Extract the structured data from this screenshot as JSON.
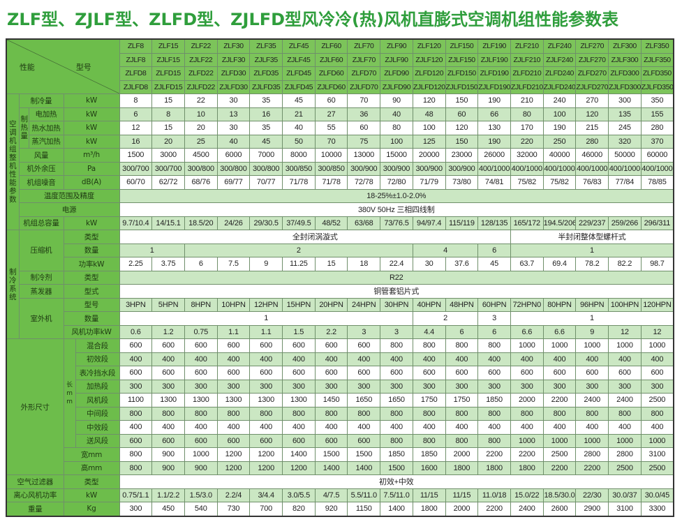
{
  "title": "ZLF型、ZJLF型、ZLFD型、ZJLFD型风冷冷(热)风机直膨式空调机组性能参数表",
  "colors": {
    "title": "#2f9e3c",
    "label_bg": "#6dbd4b",
    "header_bg": "#7cc45a",
    "row_alt": "#cbe7c3"
  },
  "header": {
    "performance": "性能",
    "model": "型号",
    "models": [
      [
        "ZLF8",
        "ZLF15",
        "ZLF22",
        "ZLF30",
        "ZLF35",
        "ZLF45",
        "ZLF60",
        "ZLF70",
        "ZLF90",
        "ZLF120",
        "ZLF150",
        "ZLF190",
        "ZLF210",
        "ZLF240",
        "ZLF270",
        "ZLF300",
        "ZLF350"
      ],
      [
        "ZJLF8",
        "ZJLF15",
        "ZJLF22",
        "ZJLF30",
        "ZJLF35",
        "ZJLF45",
        "ZJLF60",
        "ZJLF70",
        "ZJLF90",
        "ZJLF120",
        "ZJLF150",
        "ZJLF190",
        "ZJLF210",
        "ZJLF240",
        "ZJLF270",
        "ZJLF300",
        "ZJLF350"
      ],
      [
        "ZLFD8",
        "ZLFD15",
        "ZLFD22",
        "ZLFD30",
        "ZLFD35",
        "ZLFD45",
        "ZLFD60",
        "ZLFD70",
        "ZLFD90",
        "ZLFD120",
        "ZLFD150",
        "ZLFD190",
        "ZLFD210",
        "ZLFD240",
        "ZLFD270",
        "ZLFD300",
        "ZLFD350"
      ],
      [
        "ZJLFD8",
        "ZJLFD15",
        "ZJLFD22",
        "ZJLFD30",
        "ZJLFD35",
        "ZJLFD45",
        "ZJLFD60",
        "ZJLFD70",
        "ZJLFD90",
        "ZJLFD120",
        "ZJLFD150",
        "ZJLFD190",
        "ZJLFD210",
        "ZJLFD240",
        "ZJLFD270",
        "ZJLFD300",
        "ZJLFD350"
      ]
    ]
  },
  "labels": {
    "unit_params": "空调机组整机性能参数",
    "cooling": "制冷量",
    "heating": "制热量",
    "electric": "电加热",
    "hotwater": "热水加热",
    "steam": "蒸汽加热",
    "airflow": "风量",
    "pressure": "机外余压",
    "noise": "机组噪音",
    "temp": "温度范围及精度",
    "power": "电源",
    "capacity": "机组总容量",
    "refrig_system": "制冷系统",
    "compressor": "压缩机",
    "type": "类型",
    "qty": "数量",
    "power_kw": "功率kW",
    "refrigerant": "制冷剂",
    "evaporator": "蒸发器",
    "form": "型式",
    "outdoor": "室外机",
    "model_no": "型号",
    "fan_power_kw": "风机功率kW",
    "dimensions": "外形尺寸",
    "length_mm": "长mm",
    "mixing": "混合段",
    "primary": "初效段",
    "coil": "表冷挡水段",
    "heat_sec": "加热段",
    "fan_sec": "风机段",
    "middle": "中间段",
    "medium": "中效段",
    "supply": "送风段",
    "width_mm": "宽mm",
    "height_mm": "高mm",
    "filter": "空气过滤器",
    "fan_power": "离心风机功率",
    "weight": "重量",
    "u_kw": "kW",
    "u_m3h": "m³/h",
    "u_pa": "Pa",
    "u_db": "dB(A)",
    "u_kg": "Kg"
  },
  "rows": {
    "cooling": [
      "8",
      "15",
      "22",
      "30",
      "35",
      "45",
      "60",
      "70",
      "90",
      "120",
      "150",
      "190",
      "210",
      "240",
      "270",
      "300",
      "350"
    ],
    "electric": [
      "6",
      "8",
      "10",
      "13",
      "16",
      "21",
      "27",
      "36",
      "40",
      "48",
      "60",
      "66",
      "80",
      "100",
      "120",
      "135",
      "155"
    ],
    "hotwater": [
      "12",
      "15",
      "20",
      "30",
      "35",
      "40",
      "55",
      "60",
      "80",
      "100",
      "120",
      "130",
      "170",
      "190",
      "215",
      "245",
      "280"
    ],
    "steam": [
      "16",
      "20",
      "25",
      "40",
      "45",
      "50",
      "70",
      "75",
      "100",
      "125",
      "150",
      "190",
      "220",
      "250",
      "280",
      "320",
      "370"
    ],
    "airflow": [
      "1500",
      "3000",
      "4500",
      "6000",
      "7000",
      "8000",
      "10000",
      "13000",
      "15000",
      "20000",
      "23000",
      "26000",
      "32000",
      "40000",
      "46000",
      "50000",
      "60000"
    ],
    "pressure": [
      "300/700",
      "300/700",
      "300/800",
      "300/800",
      "300/800",
      "300/850",
      "300/850",
      "300/900",
      "300/900",
      "300/900",
      "300/900",
      "400/1000",
      "400/1000",
      "400/1000",
      "400/1000",
      "400/1000",
      "400/1000"
    ],
    "noise": [
      "60/70",
      "62/72",
      "68/76",
      "69/77",
      "70/77",
      "71/78",
      "71/78",
      "72/78",
      "72/80",
      "71/79",
      "73/80",
      "74/81",
      "75/82",
      "75/82",
      "76/83",
      "77/84",
      "78/85"
    ],
    "temp": [
      {
        "value": "18-25%±1.0-2.0%",
        "models": 17
      }
    ],
    "power": [
      {
        "value": "380V 50Hz 三相四线制",
        "models": 17
      }
    ],
    "capacity": [
      "9.7/10.4",
      "14/15.1",
      "18.5/20",
      "24/26",
      "29/30.5",
      "37/49.5",
      "48/52",
      "63/68",
      "73/76.5",
      "94/97.4",
      "115/119",
      "128/135",
      "165/172",
      "194.5/206",
      "229/237",
      "259/266",
      "296/311"
    ],
    "comp_type": [
      {
        "value": "全封闭涡漩式",
        "models": 12
      },
      {
        "value": "半封闭整体型螺杆式",
        "models": 5
      }
    ],
    "comp_qty": [
      {
        "value": "1",
        "models": 2
      },
      {
        "value": "2",
        "models": 7
      },
      {
        "value": "4",
        "models": 2
      },
      {
        "value": "6",
        "models": 1
      },
      {
        "value": "1",
        "models": 5
      }
    ],
    "comp_power": [
      "2.25",
      "3.75",
      "6",
      "7.5",
      "9",
      "11.25",
      "15",
      "18",
      "22.4",
      "30",
      "37.6",
      "45",
      "63.7",
      "69.4",
      "78.2",
      "82.2",
      "98.7"
    ],
    "refrigerant": [
      {
        "value": "R22",
        "models": 17
      }
    ],
    "evaporator": [
      {
        "value": "铜管套铝片式",
        "models": 17
      }
    ],
    "outdoor_model": [
      "3HPN",
      "5HPN",
      "8HPN",
      "10HPN",
      "12HPN",
      "15HPN",
      "20HPN",
      "24HPN",
      "30HPN",
      "40HPN",
      "48HPN",
      "60HPN",
      "72HPN0",
      "80HPN",
      "96HPN",
      "100HPN",
      "120HPN"
    ],
    "outdoor_qty": [
      {
        "value": "1",
        "models": 9
      },
      {
        "value": "2",
        "models": 2
      },
      {
        "value": "3",
        "models": 1
      },
      {
        "value": "1",
        "models": 5
      }
    ],
    "outdoor_fan": [
      "0.6",
      "1.2",
      "0.75",
      "1.1",
      "1.1",
      "1.5",
      "2.2",
      "3",
      "3",
      "4.4",
      "6",
      "6",
      "6.6",
      "6.6",
      "9",
      "12",
      "12"
    ],
    "mixing": [
      "600",
      "600",
      "600",
      "600",
      "600",
      "600",
      "600",
      "600",
      "800",
      "800",
      "800",
      "800",
      "1000",
      "1000",
      "1000",
      "1000",
      "1000"
    ],
    "primary": [
      "400",
      "400",
      "400",
      "400",
      "400",
      "400",
      "400",
      "400",
      "400",
      "400",
      "400",
      "400",
      "400",
      "400",
      "400",
      "400",
      "400"
    ],
    "coil": [
      "600",
      "600",
      "600",
      "600",
      "600",
      "600",
      "600",
      "600",
      "600",
      "600",
      "600",
      "600",
      "600",
      "600",
      "600",
      "600",
      "600"
    ],
    "heat_sec": [
      "300",
      "300",
      "300",
      "300",
      "300",
      "300",
      "300",
      "300",
      "300",
      "300",
      "300",
      "300",
      "300",
      "300",
      "300",
      "300",
      "300"
    ],
    "fan_sec": [
      "1100",
      "1300",
      "1300",
      "1300",
      "1300",
      "1300",
      "1450",
      "1650",
      "1650",
      "1750",
      "1750",
      "1850",
      "2000",
      "2200",
      "2400",
      "2400",
      "2500"
    ],
    "middle": [
      "800",
      "800",
      "800",
      "800",
      "800",
      "800",
      "800",
      "800",
      "800",
      "800",
      "800",
      "800",
      "800",
      "800",
      "800",
      "800",
      "800"
    ],
    "medium": [
      "400",
      "400",
      "400",
      "400",
      "400",
      "400",
      "400",
      "400",
      "400",
      "400",
      "400",
      "400",
      "400",
      "400",
      "400",
      "400",
      "400"
    ],
    "supply": [
      "600",
      "600",
      "600",
      "600",
      "600",
      "600",
      "600",
      "600",
      "800",
      "800",
      "800",
      "800",
      "1000",
      "1000",
      "1000",
      "1000",
      "1000"
    ],
    "width": [
      "800",
      "900",
      "1000",
      "1200",
      "1200",
      "1400",
      "1500",
      "1500",
      "1850",
      "1850",
      "2000",
      "2200",
      "2200",
      "2500",
      "2800",
      "2800",
      "3100"
    ],
    "height": [
      "800",
      "900",
      "900",
      "1200",
      "1200",
      "1200",
      "1400",
      "1400",
      "1500",
      "1600",
      "1800",
      "1800",
      "1800",
      "2200",
      "2200",
      "2500",
      "2500"
    ],
    "filter": [
      {
        "value": "初效+中效",
        "models": 17
      }
    ],
    "fan_power": [
      "0.75/1.1",
      "1.1/2.2",
      "1.5/3.0",
      "2.2/4",
      "3/4.4",
      "3.0/5.5",
      "4/7.5",
      "5.5/11.0",
      "7.5/11.0",
      "11/15",
      "11/15",
      "11.0/18",
      "15.0/22",
      "18.5/30.0",
      "22/30",
      "30.0/37",
      "30.0/45"
    ],
    "weight": [
      "300",
      "450",
      "540",
      "730",
      "700",
      "820",
      "920",
      "1150",
      "1400",
      "1800",
      "2000",
      "2200",
      "2400",
      "2600",
      "2900",
      "3100",
      "3300"
    ]
  }
}
